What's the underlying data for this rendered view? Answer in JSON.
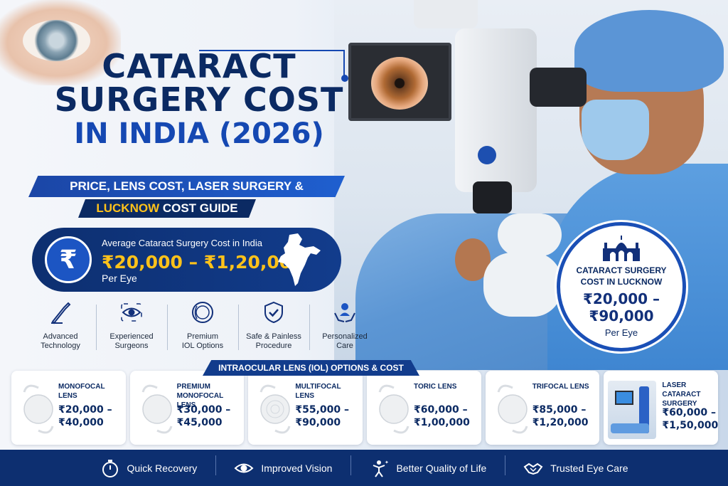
{
  "title": {
    "line1": "CATARACT",
    "line2": "SURGERY COST",
    "line3": "IN INDIA (2026)"
  },
  "subtitle": {
    "line1": "PRICE, LENS COST, LASER SURGERY &",
    "line2_highlight": "LUCKNOW",
    "line2_rest": " COST GUIDE"
  },
  "average_cost": {
    "label": "Average Cataract Surgery Cost in India",
    "range": "₹20,000 – ₹1,20,000",
    "per": "Per Eye",
    "icon": "rupee-icon"
  },
  "features": [
    {
      "label_1": "Advanced",
      "label_2": "Technology",
      "icon": "scalpel-icon"
    },
    {
      "label_1": "Experienced",
      "label_2": "Surgeons",
      "icon": "eye-icon"
    },
    {
      "label_1": "Premium",
      "label_2": "IOL Options",
      "icon": "lens-icon"
    },
    {
      "label_1": "Safe & Painless",
      "label_2": "Procedure",
      "icon": "shield-check-icon"
    },
    {
      "label_1": "Personalized",
      "label_2": "Care",
      "icon": "care-hands-icon"
    }
  ],
  "lucknow": {
    "title_1": "CATARACT SURGERY",
    "title_2": "COST IN LUCKNOW",
    "range": "₹20,000 – ₹90,000",
    "per": "Per Eye",
    "icon": "monument-icon"
  },
  "iol": {
    "heading": "INTRAOCULAR LENS (IOL) OPTIONS & COST",
    "cards": [
      {
        "name_1": "MONOFOCAL LENS",
        "name_2": "",
        "price_1": "₹20,000 –",
        "price_2": "₹40,000"
      },
      {
        "name_1": "PREMIUM",
        "name_2": "MONOFOCAL LENS",
        "price_1": "₹30,000 –",
        "price_2": "₹45,000"
      },
      {
        "name_1": "MULTIFOCAL LENS",
        "name_2": "",
        "price_1": "₹55,000 –",
        "price_2": "₹90,000"
      },
      {
        "name_1": "TORIC LENS",
        "name_2": "",
        "price_1": "₹60,000 –",
        "price_2": "₹1,00,000"
      },
      {
        "name_1": "TRIFOCAL LENS",
        "name_2": "",
        "price_1": "₹85,000 –",
        "price_2": "₹1,20,000"
      }
    ],
    "laser_card": {
      "name_1": "LASER CATARACT",
      "name_2": "SURGERY",
      "price_1": "₹60,000 –",
      "price_2": "₹1,50,000"
    }
  },
  "footer": [
    {
      "label": "Quick Recovery",
      "icon": "stopwatch-icon"
    },
    {
      "label": "Improved Vision",
      "icon": "eye-icon"
    },
    {
      "label": "Better Quality of Life",
      "icon": "person-sparkle-icon"
    },
    {
      "label": "Trusted Eye Care",
      "icon": "handshake-icon"
    }
  ],
  "colors": {
    "navy": "#0b2a63",
    "blue": "#1548b2",
    "gold": "#ffc21a",
    "footer": "#0d2f70"
  }
}
